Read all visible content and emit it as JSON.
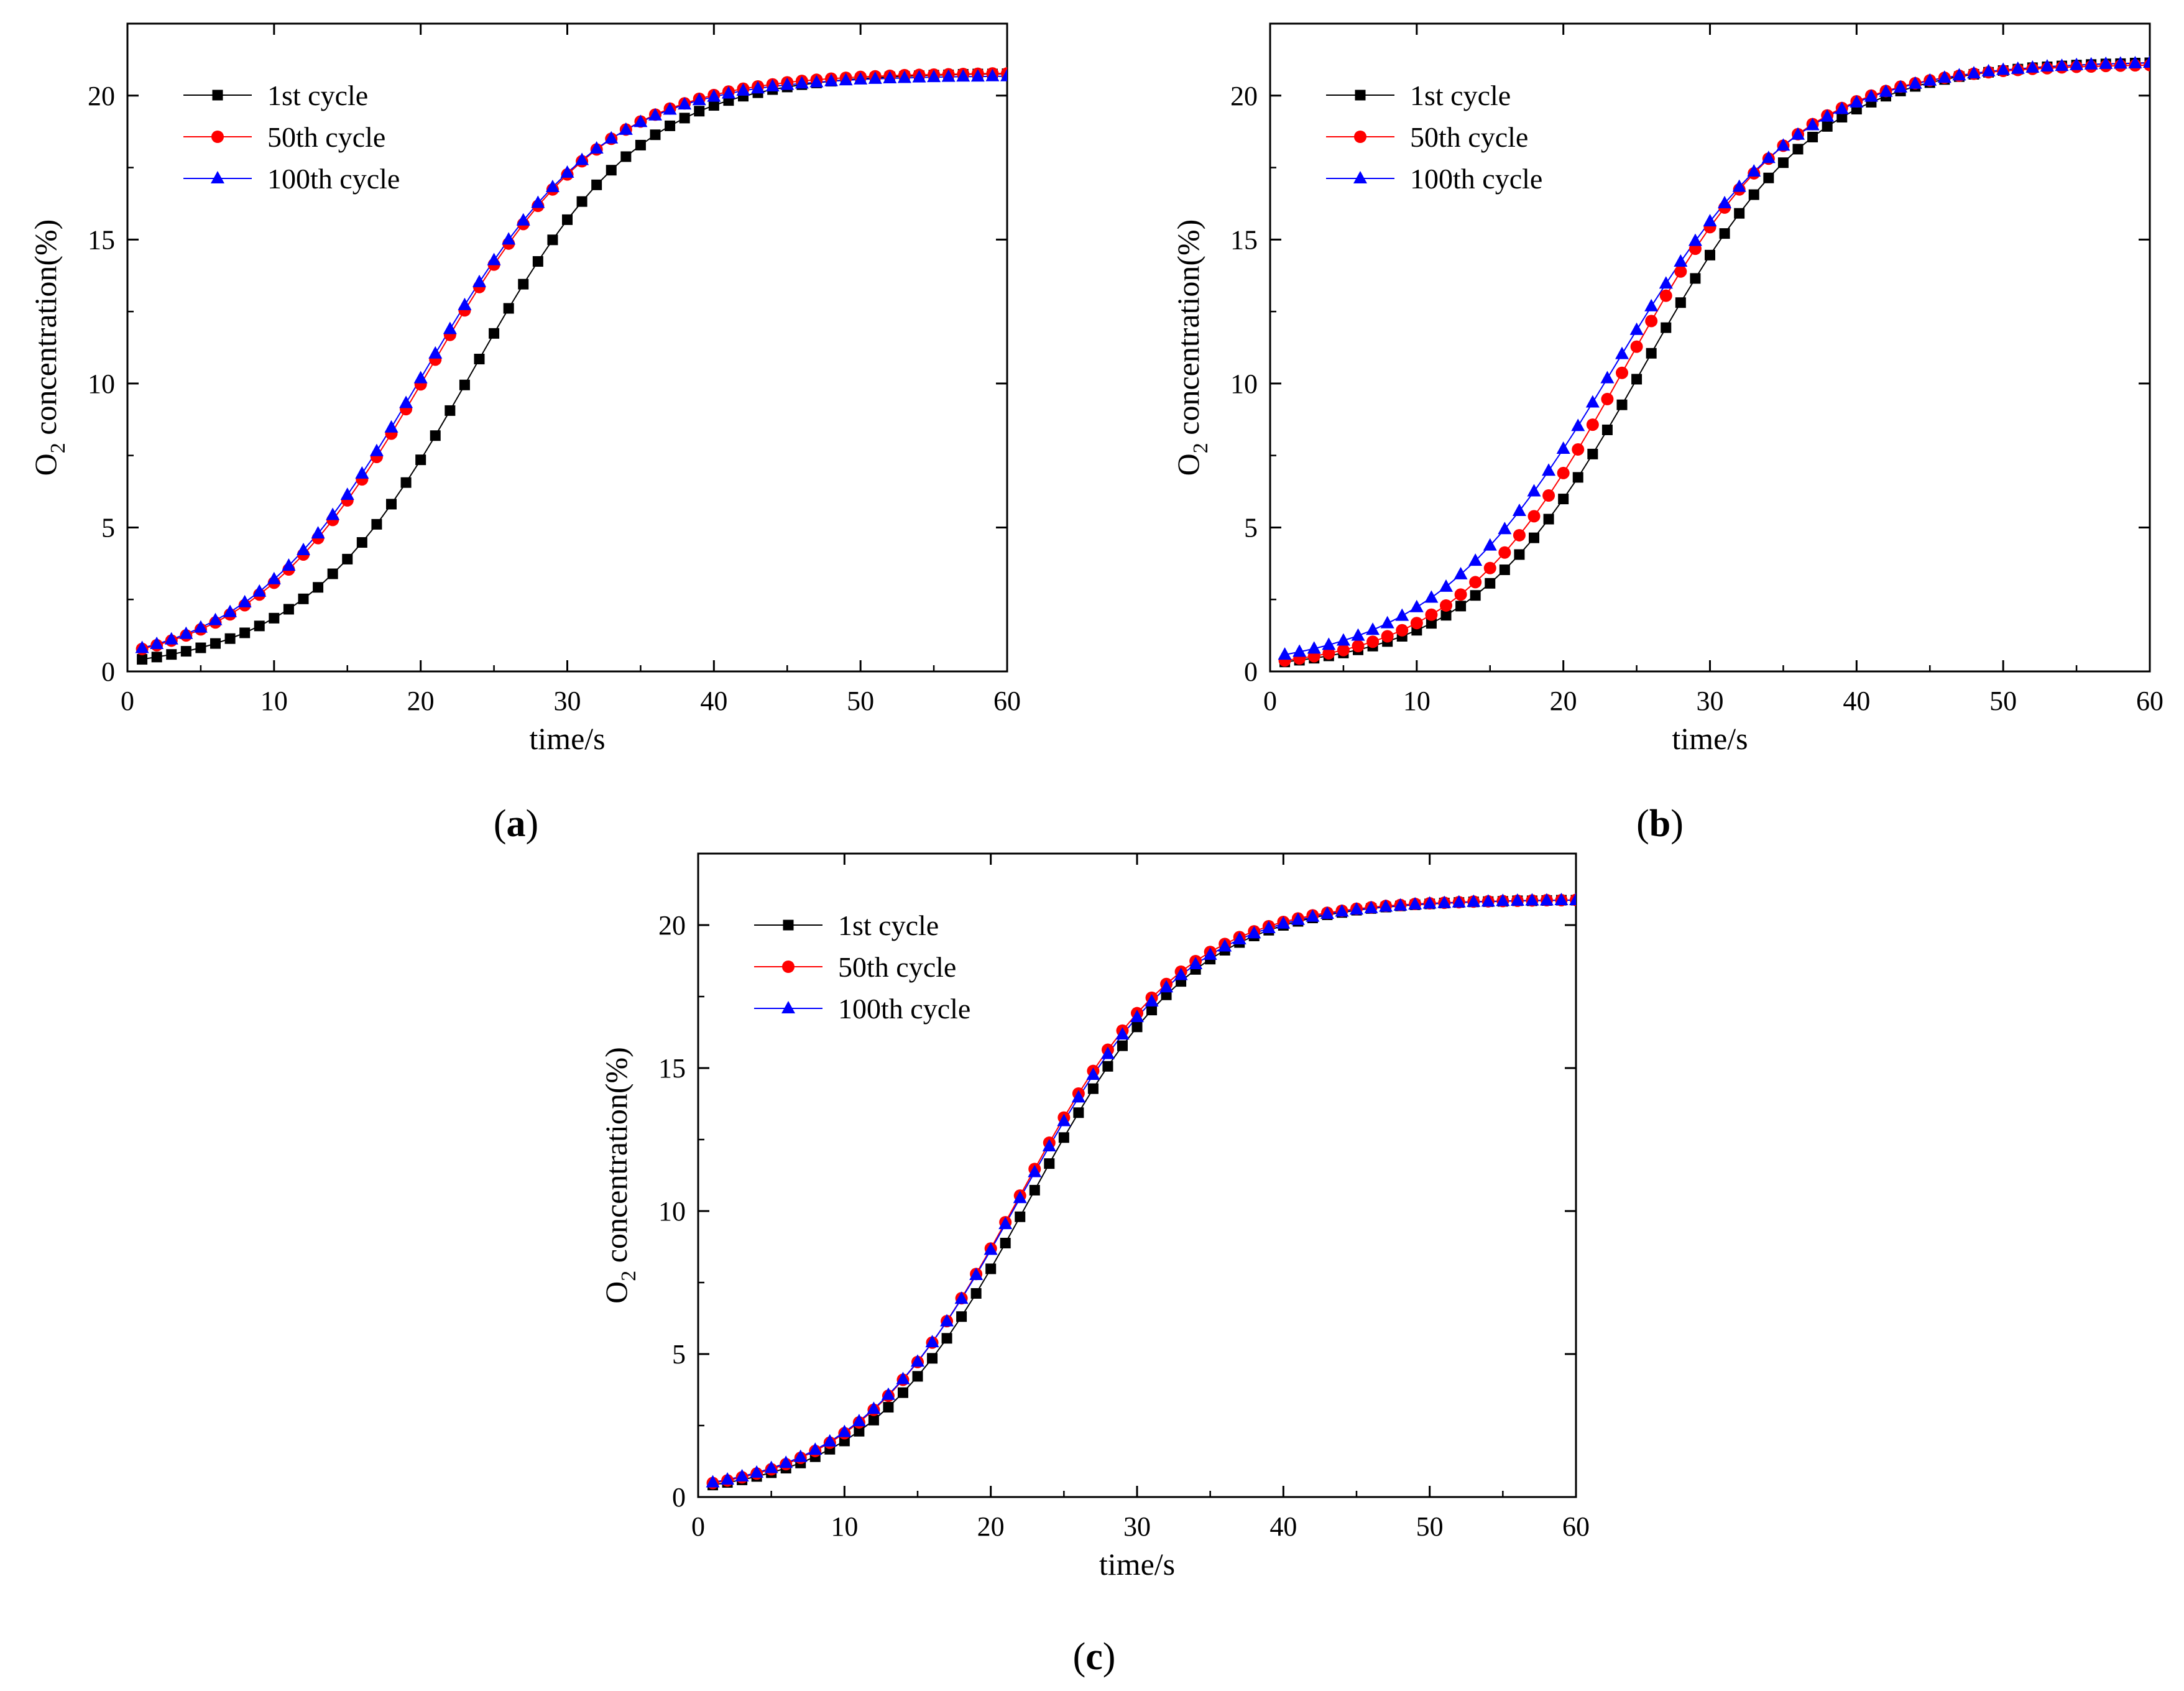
{
  "chart_data": [
    {
      "panel": "a",
      "panel_label": "(a)",
      "type": "line",
      "xlabel": "time/s",
      "ylabel": "O2 concentration(%)",
      "ylabel_parts": {
        "main": "O",
        "sub": "2",
        "rest": " concentration(%)"
      },
      "xlim": [
        0,
        60
      ],
      "ylim": [
        0,
        22.5
      ],
      "xticks": [
        0,
        10,
        20,
        30,
        40,
        50,
        60
      ],
      "yticks": [
        0,
        5,
        10,
        15,
        20
      ],
      "legend_position": "top-left",
      "params": [
        {
          "name": "1st cycle",
          "marker": "square",
          "color": "#000000",
          "t0": 23.5,
          "w": 5.8,
          "L": 20.8
        },
        {
          "name": "50th cycle",
          "marker": "circle",
          "color": "#ff0000",
          "t0": 20.5,
          "w": 6.0,
          "L": 20.8
        },
        {
          "name": "100th cycle",
          "marker": "triangle",
          "color": "#0000ff",
          "t0": 20.2,
          "w": 6.0,
          "L": 20.7
        }
      ]
    },
    {
      "panel": "b",
      "panel_label": "(b)",
      "type": "line",
      "xlabel": "time/s",
      "ylabel": "O2 concentration(%)",
      "ylabel_parts": {
        "main": "O",
        "sub": "2",
        "rest": " concentration(%)"
      },
      "xlim": [
        0,
        60
      ],
      "ylim": [
        0,
        22.5
      ],
      "xticks": [
        0,
        10,
        20,
        30,
        40,
        50,
        60
      ],
      "yticks": [
        0,
        5,
        10,
        15,
        20
      ],
      "legend_position": "top-left",
      "params": [
        {
          "name": "1st cycle",
          "marker": "square",
          "color": "#000000",
          "t0": 25.5,
          "w": 5.9,
          "L": 21.2
        },
        {
          "name": "50th cycle",
          "marker": "circle",
          "color": "#ff0000",
          "t0": 24.2,
          "w": 5.8,
          "L": 21.1
        },
        {
          "name": "100th cycle",
          "marker": "triangle",
          "color": "#0000ff",
          "t0": 23.5,
          "w": 6.3,
          "L": 21.2
        }
      ]
    },
    {
      "panel": "c",
      "panel_label": "(c)",
      "type": "line",
      "xlabel": "time/s",
      "ylabel": "O2 concentration(%)",
      "ylabel_parts": {
        "main": "O",
        "sub": "2",
        "rest": " concentration(%)"
      },
      "xlim": [
        0,
        60
      ],
      "ylim": [
        0,
        22.5
      ],
      "xticks": [
        0,
        10,
        20,
        30,
        40,
        50,
        60
      ],
      "yticks": [
        0,
        5,
        10,
        15,
        20
      ],
      "legend_position": "top-left",
      "params": [
        {
          "name": "1st cycle",
          "marker": "square",
          "color": "#000000",
          "t0": 22.7,
          "w": 5.6,
          "L": 20.9
        },
        {
          "name": "50th cycle",
          "marker": "circle",
          "color": "#ff0000",
          "t0": 21.9,
          "w": 5.6,
          "L": 20.9
        },
        {
          "name": "100th cycle",
          "marker": "triangle",
          "color": "#0000ff",
          "t0": 22.0,
          "w": 5.7,
          "L": 20.9
        }
      ]
    }
  ]
}
